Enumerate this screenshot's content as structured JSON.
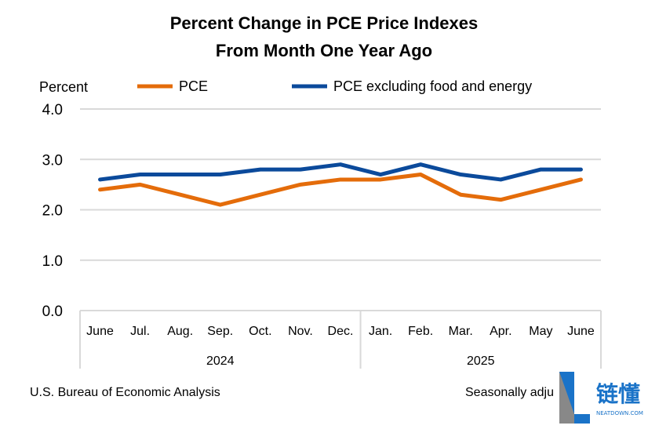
{
  "chart_data": {
    "type": "line",
    "title": [
      "Percent Change in PCE Price Indexes",
      "From Month One Year Ago"
    ],
    "ylabel": "Percent",
    "ylim": [
      0,
      4
    ],
    "yticks": [
      "0.0",
      "1.0",
      "2.0",
      "3.0",
      "4.0"
    ],
    "grid": true,
    "legend_position": "top",
    "categories": [
      "June",
      "Jul.",
      "Aug.",
      "Sep.",
      "Oct.",
      "Nov.",
      "Dec.",
      "Jan.",
      "Feb.",
      "Mar.",
      "Apr.",
      "May",
      "June"
    ],
    "year_groups": [
      {
        "label": "2024",
        "count": 7
      },
      {
        "label": "2025",
        "count": 6
      }
    ],
    "series": [
      {
        "name": "PCE",
        "color": "#E46C0A",
        "values": [
          2.4,
          2.5,
          2.3,
          2.1,
          2.3,
          2.5,
          2.6,
          2.6,
          2.7,
          2.3,
          2.2,
          2.4,
          2.6
        ]
      },
      {
        "name": "PCE excluding food and energy",
        "color": "#0B4A9B",
        "values": [
          2.6,
          2.7,
          2.7,
          2.7,
          2.8,
          2.8,
          2.9,
          2.7,
          2.9,
          2.7,
          2.6,
          2.8,
          2.8
        ]
      }
    ]
  },
  "footer": {
    "source": "U.S. Bureau of Economic Analysis",
    "note": "Seasonally adju"
  },
  "watermark": {
    "chinese": "链懂",
    "site": "NEATDOWN.COM"
  }
}
